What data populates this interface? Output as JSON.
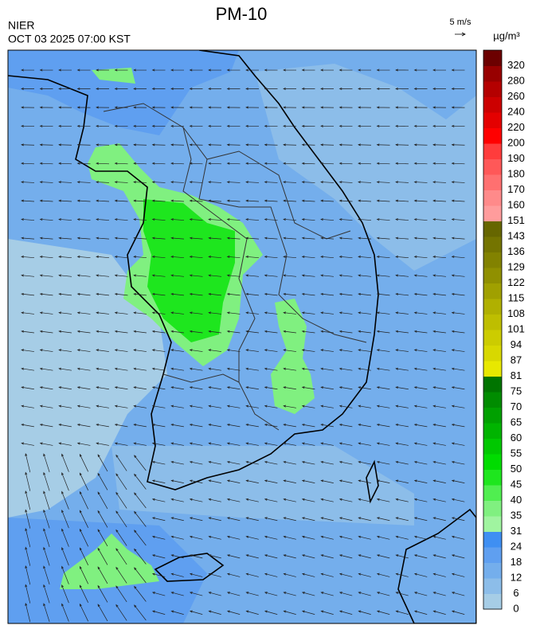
{
  "header": {
    "title": "PM-10",
    "agency": "NIER",
    "datetime": "OCT 03 2025 07:00 KST",
    "wind_scale": "5 m/s",
    "unit": "µg/m³"
  },
  "colorbar": {
    "levels": [
      "0",
      "6",
      "12",
      "18",
      "24",
      "31",
      "35",
      "40",
      "45",
      "50",
      "55",
      "60",
      "65",
      "70",
      "75",
      "81",
      "87",
      "94",
      "101",
      "108",
      "115",
      "122",
      "129",
      "136",
      "143",
      "151",
      "160",
      "170",
      "180",
      "190",
      "200",
      "220",
      "240",
      "260",
      "280",
      "320"
    ],
    "colors": [
      "#a6cde6",
      "#8cbde9",
      "#74aeec",
      "#5f9ff0",
      "#3f8ff2",
      "#a0f4a0",
      "#80f080",
      "#50ee50",
      "#1ee61e",
      "#00dc00",
      "#00c800",
      "#00b400",
      "#00a000",
      "#008c00",
      "#007400",
      "#e8e800",
      "#d8d800",
      "#cccc00",
      "#bebe00",
      "#b0b000",
      "#a0a000",
      "#909000",
      "#828200",
      "#747400",
      "#666600",
      "#ff9c9c",
      "#ff8a8a",
      "#ff7070",
      "#ff5858",
      "#ff3c3c",
      "#ff0000",
      "#e40000",
      "#cc0000",
      "#b40000",
      "#980000",
      "#6c0000"
    ]
  }
}
